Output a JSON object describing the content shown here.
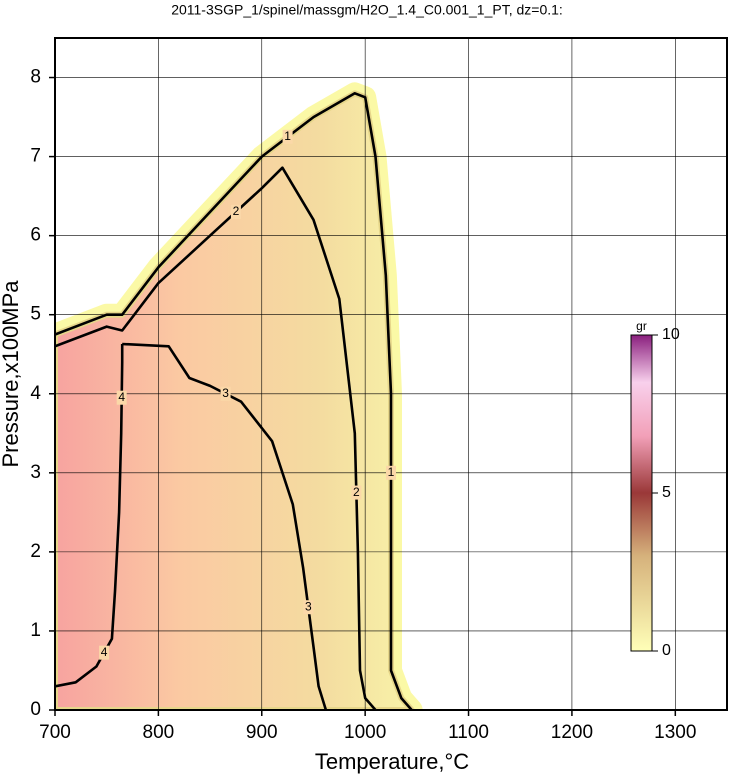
{
  "chart_data": {
    "type": "contour",
    "title": "2011-3SGP_1/spinel/massgm/H2O_1.4_C0.001_1_PT, dz=0.1:",
    "xlabel": "Temperature,°C",
    "ylabel": "Pressure,x100MPa",
    "xlim": [
      700,
      1350
    ],
    "ylim": [
      0,
      8.5
    ],
    "xticks": [
      700,
      800,
      900,
      1000,
      1100,
      1200,
      1300
    ],
    "yticks": [
      0,
      1,
      2,
      3,
      4,
      5,
      6,
      7,
      8
    ],
    "grid": true,
    "contours": [
      {
        "level": 1,
        "x": [
          700,
          750,
          765,
          800,
          850,
          900,
          950,
          990,
          1000,
          1010,
          1020,
          1025,
          1025,
          1025,
          1035,
          1045
        ],
        "y": [
          4.75,
          5.0,
          5.0,
          5.6,
          6.3,
          7.0,
          7.5,
          7.8,
          7.75,
          7.0,
          5.5,
          4.0,
          2.0,
          0.5,
          0.15,
          0
        ]
      },
      {
        "level": 2,
        "x": [
          700,
          750,
          765,
          800,
          850,
          900,
          920,
          950,
          975,
          990,
          993,
          995,
          1000,
          1010
        ],
        "y": [
          4.6,
          4.85,
          4.8,
          5.4,
          6.0,
          6.6,
          6.86,
          6.2,
          5.2,
          3.5,
          2.0,
          0.5,
          0.15,
          0
        ]
      },
      {
        "level": 3,
        "x": [
          765,
          810,
          830,
          850,
          880,
          910,
          930,
          940,
          950,
          955,
          962
        ],
        "y": [
          4.63,
          4.6,
          4.2,
          4.1,
          3.9,
          3.4,
          2.6,
          1.8,
          0.8,
          0.3,
          0
        ]
      },
      {
        "level": 4,
        "x": [
          700,
          720,
          740,
          755,
          758,
          762,
          764,
          765,
          765
        ],
        "y": [
          0.3,
          0.35,
          0.55,
          0.9,
          1.5,
          2.5,
          3.5,
          4.4,
          4.63
        ]
      }
    ],
    "colorbar": {
      "label": "gr",
      "lim": [
        0,
        10
      ],
      "ticks": [
        0,
        5,
        10
      ]
    }
  }
}
